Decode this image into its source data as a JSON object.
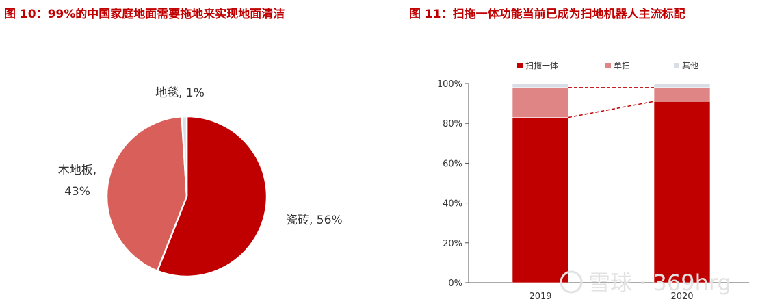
{
  "titles": {
    "left": "图 10：99%的中国家庭地面需要拖地来实现地面清洁",
    "right": "图 11：扫拖一体功能当前已成为扫地机器人主流标配"
  },
  "watermark": "雪球 · 369hrg",
  "chart_data": [
    {
      "type": "pie",
      "slices": [
        {
          "label": "瓷砖, 56%",
          "value": 56,
          "color": "#c00000"
        },
        {
          "label": "木地板, 43%",
          "value": 43,
          "color": "#d9605a"
        },
        {
          "label": "地毯, 1%",
          "value": 1,
          "color": "#d9dde6"
        }
      ]
    },
    {
      "type": "bar",
      "stacked": true,
      "categories": [
        "2019",
        "2020"
      ],
      "series": [
        {
          "name": "扫拖一体",
          "values": [
            83,
            91
          ],
          "color": "#c00000"
        },
        {
          "name": "单扫",
          "values": [
            15,
            7
          ],
          "color": "#e08585"
        },
        {
          "name": "其他",
          "values": [
            2,
            2
          ],
          "color": "#d9dde6"
        }
      ],
      "ylim": [
        0,
        100
      ],
      "yticks": [
        "0%",
        "20%",
        "40%",
        "60%",
        "80%",
        "100%"
      ],
      "legend": "top",
      "grid": false
    }
  ]
}
